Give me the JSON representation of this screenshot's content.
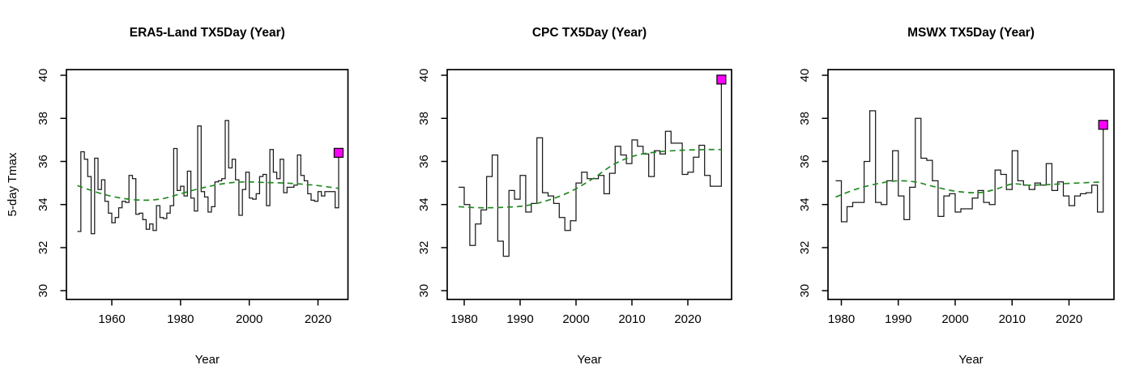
{
  "figure": {
    "background": "#ffffff",
    "shared_ylabel": "5-day Tmax",
    "shared_xlabel": "Year"
  },
  "colors": {
    "step_line": "#1a1a1a",
    "trend_line": "#228b22",
    "marker_fill": "#ff00ff",
    "marker_stroke": "#000000",
    "axis": "#000000"
  },
  "chart_data": [
    {
      "type": "line",
      "subtype": "step",
      "id": "era5land",
      "title": "ERA5-Land TX5Day (Year)",
      "xlabel": "Year",
      "ylabel": "5-day Tmax",
      "start_year": 1950,
      "end_year": 2026,
      "x_ticks": [
        1960,
        1980,
        2000,
        2020
      ],
      "y_ticks": [
        30,
        32,
        34,
        36,
        38,
        40
      ],
      "ylim": [
        29.4,
        40.6
      ],
      "grid": false,
      "legend": "none",
      "values": [
        32.75,
        36.45,
        36.1,
        35.3,
        32.65,
        36.15,
        34.7,
        35.15,
        34.15,
        33.6,
        33.15,
        33.4,
        33.85,
        34.15,
        34.1,
        35.35,
        35.2,
        33.55,
        33.6,
        33.3,
        32.85,
        33.1,
        32.8,
        33.95,
        33.4,
        33.35,
        33.6,
        33.95,
        36.6,
        34.65,
        34.85,
        34.4,
        35.55,
        34.3,
        33.7,
        37.65,
        34.6,
        34.35,
        33.65,
        33.9,
        35.05,
        35.1,
        35.2,
        37.9,
        35.7,
        36.1,
        35.15,
        33.5,
        34.7,
        35.5,
        34.3,
        34.25,
        34.5,
        35.3,
        35.4,
        33.95,
        36.55,
        35.5,
        35.2,
        36.1,
        34.55,
        34.8,
        34.8,
        34.9,
        36.3,
        35.35,
        35.1,
        34.5,
        34.2,
        34.15,
        34.6,
        34.4,
        34.6,
        34.6,
        34.6,
        33.85,
        36.4
      ],
      "trend": {
        "style": "dashed",
        "points": [
          [
            1950,
            34.88
          ],
          [
            1955,
            34.6
          ],
          [
            1960,
            34.38
          ],
          [
            1965,
            34.25
          ],
          [
            1970,
            34.2
          ],
          [
            1975,
            34.28
          ],
          [
            1980,
            34.5
          ],
          [
            1985,
            34.72
          ],
          [
            1990,
            34.9
          ],
          [
            1995,
            35.02
          ],
          [
            2000,
            35.05
          ],
          [
            2005,
            35.02
          ],
          [
            2010,
            35.0
          ],
          [
            2015,
            34.95
          ],
          [
            2020,
            34.88
          ],
          [
            2026,
            34.75
          ]
        ]
      },
      "highlight_marker": {
        "year": 2026,
        "value": 36.4,
        "shape": "square"
      }
    },
    {
      "type": "line",
      "subtype": "step",
      "id": "cpc",
      "title": "CPC TX5Day (Year)",
      "xlabel": "Year",
      "ylabel": "",
      "start_year": 1979,
      "end_year": 2026,
      "x_ticks": [
        1980,
        1990,
        2000,
        2010,
        2020
      ],
      "y_ticks": [
        30,
        32,
        34,
        36,
        38,
        40
      ],
      "ylim": [
        29.4,
        40.6
      ],
      "grid": false,
      "legend": "none",
      "values": [
        34.8,
        34.0,
        32.1,
        33.1,
        33.75,
        35.3,
        36.3,
        32.3,
        31.6,
        34.65,
        34.25,
        35.35,
        33.65,
        34.05,
        37.1,
        34.55,
        34.4,
        34.05,
        33.4,
        32.8,
        33.25,
        35.0,
        35.5,
        35.2,
        35.2,
        35.35,
        34.5,
        35.45,
        36.7,
        36.3,
        35.9,
        37.0,
        36.7,
        36.35,
        35.3,
        36.5,
        36.35,
        37.4,
        36.85,
        36.85,
        35.4,
        35.5,
        36.2,
        36.75,
        35.35,
        34.85,
        34.85,
        39.8
      ],
      "trend": {
        "style": "dashed",
        "points": [
          [
            1979,
            33.9
          ],
          [
            1983,
            33.85
          ],
          [
            1987,
            33.87
          ],
          [
            1991,
            33.95
          ],
          [
            1995,
            34.2
          ],
          [
            1999,
            34.6
          ],
          [
            2003,
            35.2
          ],
          [
            2007,
            35.9
          ],
          [
            2011,
            36.3
          ],
          [
            2015,
            36.45
          ],
          [
            2019,
            36.52
          ],
          [
            2023,
            36.55
          ],
          [
            2026,
            36.55
          ]
        ]
      },
      "highlight_marker": {
        "year": 2026,
        "value": 39.8,
        "shape": "square"
      }
    },
    {
      "type": "line",
      "subtype": "step",
      "id": "mswx",
      "title": "MSWX TX5Day (Year)",
      "xlabel": "Year",
      "ylabel": "",
      "start_year": 1979,
      "end_year": 2026,
      "x_ticks": [
        1980,
        1990,
        2000,
        2010,
        2020
      ],
      "y_ticks": [
        30,
        32,
        34,
        36,
        38,
        40
      ],
      "ylim": [
        29.4,
        40.6
      ],
      "grid": false,
      "legend": "none",
      "values": [
        35.1,
        33.2,
        33.9,
        34.1,
        34.1,
        36.0,
        38.35,
        34.1,
        34.0,
        35.1,
        36.5,
        34.4,
        33.3,
        34.8,
        38.0,
        36.15,
        36.05,
        35.1,
        33.45,
        34.4,
        34.5,
        33.65,
        33.8,
        33.8,
        34.3,
        34.65,
        34.1,
        34.0,
        35.6,
        35.4,
        34.7,
        36.5,
        35.1,
        34.9,
        34.7,
        35.0,
        34.9,
        35.9,
        34.65,
        35.05,
        34.4,
        33.95,
        34.4,
        34.5,
        34.55,
        34.9,
        33.65,
        37.7
      ],
      "trend": {
        "style": "dashed",
        "points": [
          [
            1979,
            34.35
          ],
          [
            1983,
            34.75
          ],
          [
            1987,
            35.0
          ],
          [
            1990,
            35.1
          ],
          [
            1993,
            35.05
          ],
          [
            1996,
            34.85
          ],
          [
            2000,
            34.62
          ],
          [
            2004,
            34.55
          ],
          [
            2007,
            34.7
          ],
          [
            2010,
            34.95
          ],
          [
            2013,
            34.9
          ],
          [
            2016,
            34.92
          ],
          [
            2020,
            34.98
          ],
          [
            2026,
            35.05
          ]
        ]
      },
      "highlight_marker": {
        "year": 2026,
        "value": 37.7,
        "shape": "square"
      }
    }
  ]
}
